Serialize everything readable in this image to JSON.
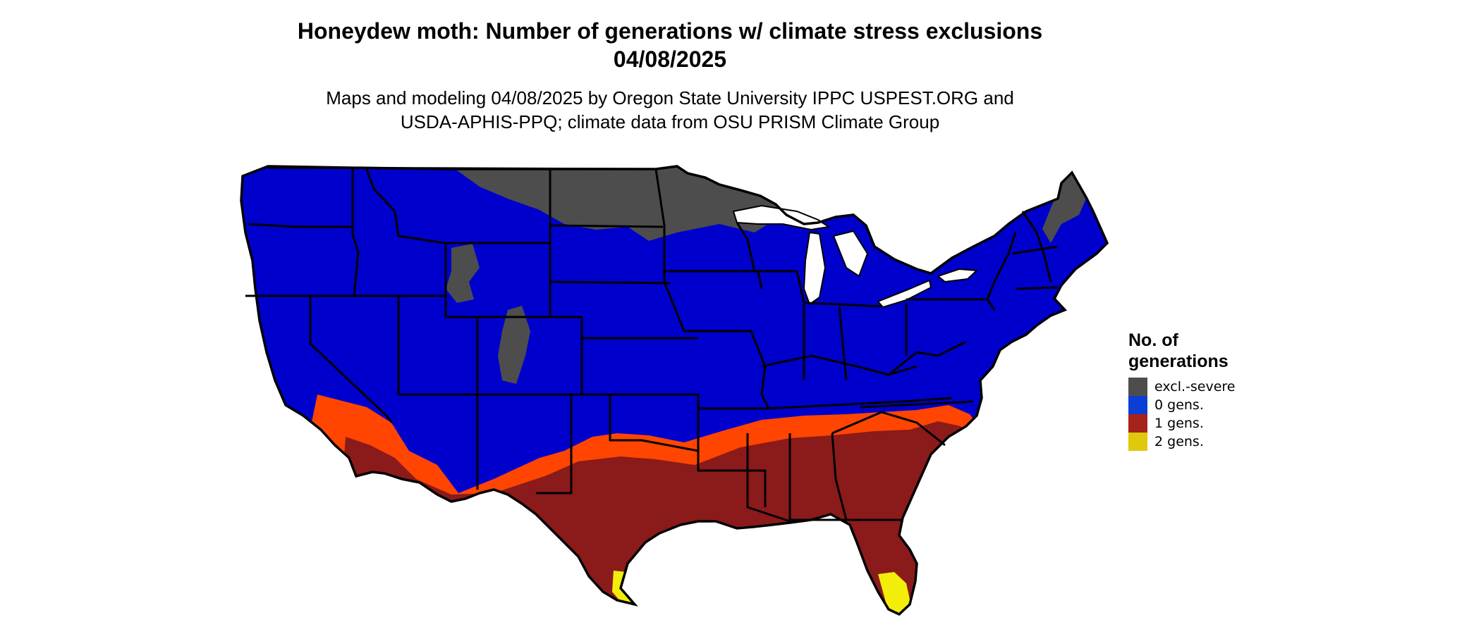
{
  "title": {
    "line1": "Honeydew moth: Number of generations w/ climate stress exclusions",
    "line2": "04/08/2025"
  },
  "subtitle": {
    "line1": "Maps and modeling 04/08/2025 by Oregon State University IPPC USPEST.ORG and",
    "line2": "USDA-APHIS-PPQ; climate data from OSU PRISM Climate Group"
  },
  "legend": {
    "title_line1": "No. of",
    "title_line2": "generations",
    "items": [
      {
        "label": "excl.-severe",
        "color": "#4d4d4d"
      },
      {
        "label": "0 gens.",
        "color": "#0a3fd6"
      },
      {
        "label": "1 gens.",
        "color": "#a5231b"
      },
      {
        "label": "2 gens.",
        "color": "#e0c80a"
      }
    ]
  },
  "map_colors": {
    "zero_gens": "#0000cc",
    "excluded": "#4d4d4d",
    "one_gen_core": "#8b1a1a",
    "one_gen_fringe": "#ff4500",
    "two_gens": "#f2ee0a",
    "borders": "#000000"
  }
}
